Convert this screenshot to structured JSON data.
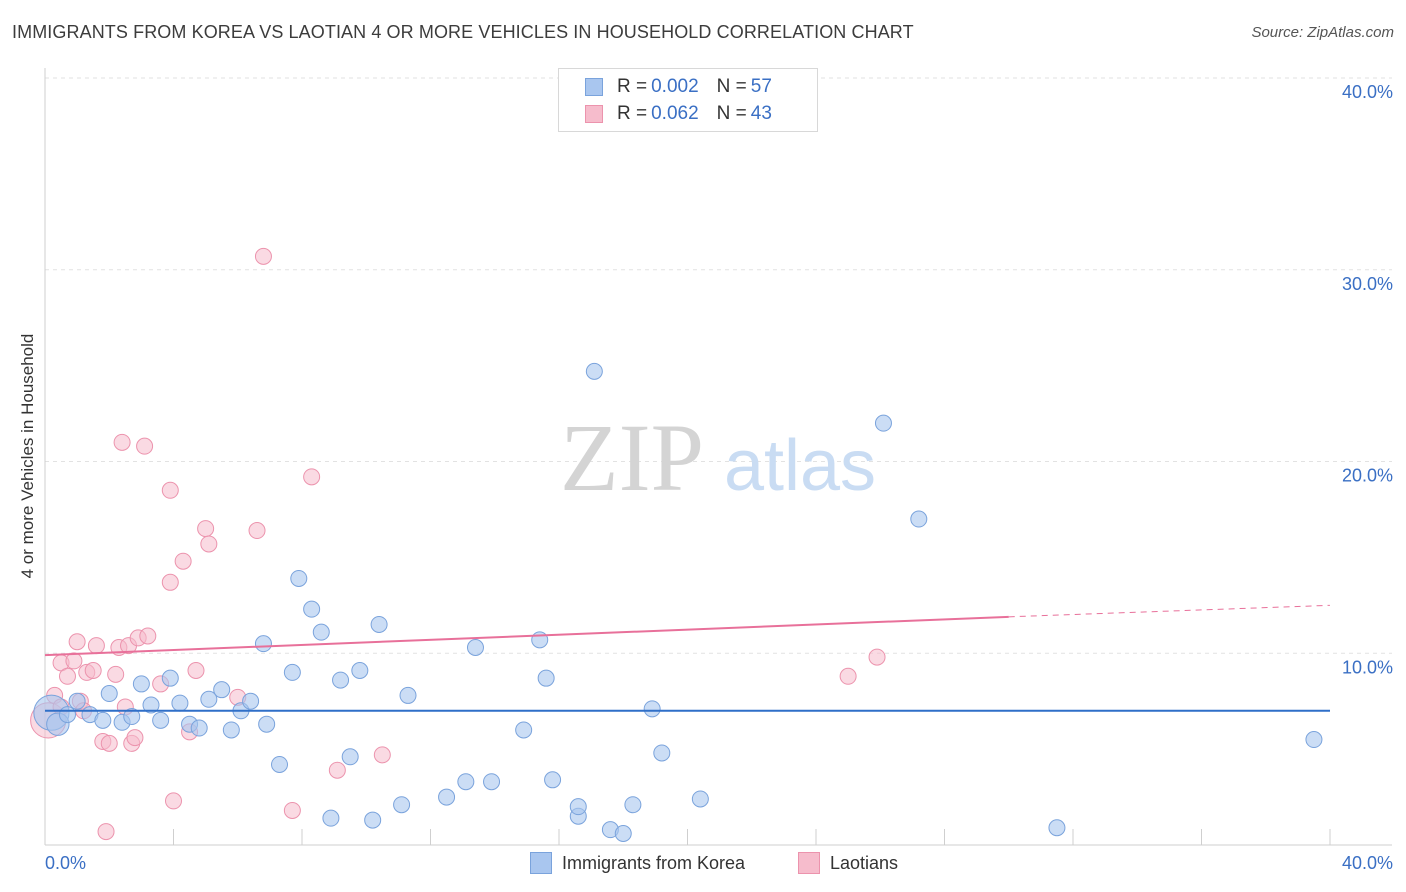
{
  "header": {
    "title": "IMMIGRANTS FROM KOREA VS LAOTIAN 4 OR MORE VEHICLES IN HOUSEHOLD CORRELATION CHART",
    "source": "Source: ZipAtlas.com"
  },
  "watermark": {
    "zip": "ZIP",
    "atlas": "atlas"
  },
  "legend": {
    "rows": [
      {
        "r_label": "R = ",
        "r_value": "0.002",
        "n_label": "N = ",
        "n_value": "57"
      },
      {
        "r_label": "R = ",
        "r_value": "0.062",
        "n_label": "N = ",
        "n_value": "43"
      }
    ]
  },
  "bottom_legend": {
    "series1": "Immigrants from Korea",
    "series2": "Laotians"
  },
  "colors": {
    "korea_fill": "#a9c6ef",
    "korea_stroke": "#7aa3dc",
    "korea_line": "#2f6fc8",
    "laotian_fill": "#f6bccc",
    "laotian_stroke": "#ec93ad",
    "laotian_line": "#e8709a",
    "axis_label": "#3a6fc4",
    "grid": "#e2e2e2"
  },
  "chart_data": {
    "type": "scatter",
    "title": "IMMIGRANTS FROM KOREA VS LAOTIAN 4 OR MORE VEHICLES IN HOUSEHOLD CORRELATION CHART",
    "xlabel": "",
    "ylabel": "4 or more Vehicles in Household",
    "xlim": [
      0,
      40
    ],
    "ylim": [
      0,
      40
    ],
    "x_tick_labels": [
      "0.0%",
      "40.0%"
    ],
    "y_ticks": [
      10,
      20,
      30,
      40
    ],
    "y_tick_labels": [
      "10.0%",
      "20.0%",
      "30.0%",
      "40.0%"
    ],
    "grid": true,
    "legend_position": "top-center",
    "series": [
      {
        "name": "Immigrants from Korea",
        "r": 0.002,
        "n": 57,
        "trend": {
          "x0": 0,
          "y0": 7.0,
          "x1": 40,
          "y1": 7.0
        },
        "points": [
          [
            0.2,
            6.9,
            22
          ],
          [
            0.4,
            6.3,
            14
          ],
          [
            0.7,
            6.8,
            10
          ],
          [
            1.0,
            7.5,
            10
          ],
          [
            1.4,
            6.8,
            10
          ],
          [
            1.8,
            6.5,
            10
          ],
          [
            2.0,
            7.9,
            10
          ],
          [
            2.4,
            6.4,
            10
          ],
          [
            2.7,
            6.7,
            10
          ],
          [
            3.0,
            8.4,
            10
          ],
          [
            3.3,
            7.3,
            10
          ],
          [
            3.6,
            6.5,
            10
          ],
          [
            3.9,
            8.7,
            10
          ],
          [
            4.2,
            7.4,
            10
          ],
          [
            4.5,
            6.3,
            10
          ],
          [
            4.8,
            6.1,
            10
          ],
          [
            5.1,
            7.6,
            10
          ],
          [
            5.5,
            8.1,
            10
          ],
          [
            5.8,
            6.0,
            10
          ],
          [
            6.1,
            7.0,
            10
          ],
          [
            6.4,
            7.5,
            10
          ],
          [
            6.8,
            10.5,
            10
          ],
          [
            6.9,
            6.3,
            10
          ],
          [
            7.3,
            4.2,
            10
          ],
          [
            7.7,
            9.0,
            10
          ],
          [
            7.9,
            13.9,
            10
          ],
          [
            8.3,
            12.3,
            10
          ],
          [
            8.6,
            11.1,
            10
          ],
          [
            8.9,
            1.4,
            10
          ],
          [
            9.2,
            8.6,
            10
          ],
          [
            9.5,
            4.6,
            10
          ],
          [
            9.8,
            9.1,
            10
          ],
          [
            10.2,
            1.3,
            10
          ],
          [
            10.4,
            11.5,
            10
          ],
          [
            11.1,
            2.1,
            10
          ],
          [
            11.3,
            7.8,
            10
          ],
          [
            12.5,
            2.5,
            10
          ],
          [
            13.1,
            3.3,
            10
          ],
          [
            13.4,
            10.3,
            10
          ],
          [
            13.9,
            3.3,
            10
          ],
          [
            14.9,
            6.0,
            10
          ],
          [
            15.4,
            10.7,
            10
          ],
          [
            15.6,
            8.7,
            10
          ],
          [
            15.8,
            3.4,
            10
          ],
          [
            16.6,
            1.5,
            10
          ],
          [
            16.6,
            2.0,
            10
          ],
          [
            17.1,
            24.7,
            10
          ],
          [
            17.6,
            0.8,
            10
          ],
          [
            18.0,
            0.6,
            10
          ],
          [
            18.3,
            2.1,
            10
          ],
          [
            18.9,
            7.1,
            10
          ],
          [
            19.2,
            4.8,
            10
          ],
          [
            20.4,
            2.4,
            10
          ],
          [
            26.1,
            22.0,
            10
          ],
          [
            27.2,
            17.0,
            10
          ],
          [
            31.5,
            0.9,
            10
          ],
          [
            39.5,
            5.5,
            10
          ]
        ]
      },
      {
        "name": "Laotians",
        "r": 0.062,
        "n": 43,
        "trend": {
          "x0": 0,
          "y0": 9.9,
          "x1": 30,
          "y1": 11.9,
          "dash_x1": 40,
          "dash_y1": 12.5
        },
        "points": [
          [
            0.1,
            6.5,
            22
          ],
          [
            0.3,
            7.8,
            10
          ],
          [
            0.5,
            9.5,
            10
          ],
          [
            0.7,
            8.8,
            10
          ],
          [
            0.9,
            9.6,
            10
          ],
          [
            1.0,
            10.6,
            10
          ],
          [
            1.1,
            7.5,
            10
          ],
          [
            1.3,
            9.0,
            10
          ],
          [
            1.5,
            9.1,
            10
          ],
          [
            1.6,
            10.4,
            10
          ],
          [
            1.8,
            5.4,
            10
          ],
          [
            1.9,
            0.7,
            10
          ],
          [
            2.0,
            5.3,
            10
          ],
          [
            2.2,
            8.9,
            10
          ],
          [
            2.3,
            10.3,
            10
          ],
          [
            2.4,
            21.0,
            10
          ],
          [
            2.6,
            10.4,
            10
          ],
          [
            2.7,
            5.3,
            10
          ],
          [
            2.8,
            5.6,
            10
          ],
          [
            2.9,
            10.8,
            10
          ],
          [
            3.1,
            20.8,
            10
          ],
          [
            3.2,
            10.9,
            10
          ],
          [
            3.6,
            8.4,
            10
          ],
          [
            3.9,
            13.7,
            10
          ],
          [
            3.9,
            18.5,
            10
          ],
          [
            4.0,
            2.3,
            10
          ],
          [
            4.3,
            14.8,
            10
          ],
          [
            4.5,
            5.9,
            10
          ],
          [
            4.7,
            9.1,
            10
          ],
          [
            5.0,
            16.5,
            10
          ],
          [
            5.1,
            15.7,
            10
          ],
          [
            6.0,
            7.7,
            10
          ],
          [
            6.6,
            16.4,
            10
          ],
          [
            6.8,
            30.7,
            10
          ],
          [
            7.7,
            1.8,
            10
          ],
          [
            8.3,
            19.2,
            10
          ],
          [
            9.1,
            3.9,
            10
          ],
          [
            10.5,
            4.7,
            10
          ],
          [
            25.0,
            8.8,
            10
          ],
          [
            25.9,
            9.8,
            10
          ],
          [
            0.5,
            7.2,
            10
          ],
          [
            1.2,
            7.0,
            10
          ],
          [
            2.5,
            7.2,
            10
          ]
        ]
      }
    ]
  }
}
